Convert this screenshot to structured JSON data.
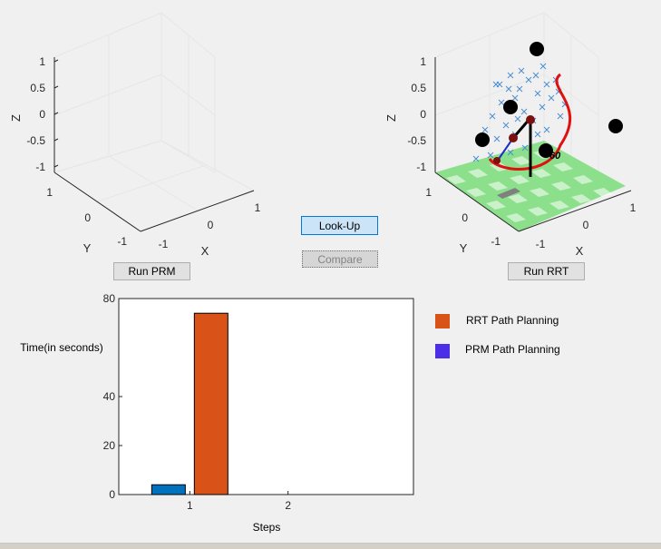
{
  "buttons": {
    "run_prm": "Run PRM",
    "run_rrt": "Run RRT",
    "look_up": "Look-Up",
    "compare": "Compare"
  },
  "axes3d": {
    "z_label": "Z",
    "y_label": "Y",
    "x_label": "X",
    "z_ticks": [
      "1",
      "0.5",
      "0",
      "-0.5",
      "-1"
    ],
    "y_ticks": [
      "1",
      "0",
      "-1"
    ],
    "x_ticks": [
      "-1",
      "0",
      "1"
    ]
  },
  "rrt_plot": {
    "joint_label": "60",
    "colors": {
      "tree": "#4a8fd0",
      "path": "#e01010",
      "floor_light": "#8ce08c",
      "obstacle": "#000000"
    }
  },
  "legend": {
    "items": [
      {
        "label": "RRT Path Planning",
        "color": "#d95319"
      },
      {
        "label": "PRM Path Planning",
        "color": "#4b2ee6"
      }
    ]
  },
  "chart_data": {
    "type": "bar",
    "categories": [
      "1",
      "2"
    ],
    "series": [
      {
        "name": "PRM Path Planning",
        "values": [
          4,
          0
        ],
        "color": "#0072bd"
      },
      {
        "name": "RRT Path Planning",
        "values": [
          74,
          0
        ],
        "color": "#d95319"
      }
    ],
    "xlabel": "Steps",
    "ylabel": "Time(in seconds)",
    "ylim": [
      0,
      80
    ],
    "yticks": [
      "0",
      "20",
      "40",
      "80"
    ]
  }
}
